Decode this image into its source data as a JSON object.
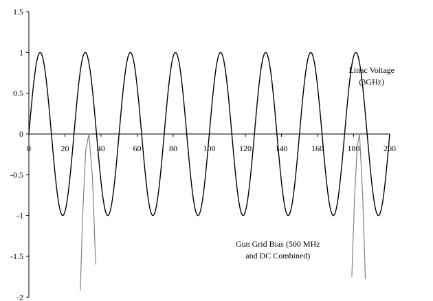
{
  "chart_data": {
    "type": "line",
    "title": "",
    "xlabel": "",
    "ylabel": "",
    "xlim": [
      0,
      200
    ],
    "ylim": [
      -2,
      1.5
    ],
    "grid": false,
    "x_ticks": [
      0,
      20,
      40,
      60,
      80,
      100,
      120,
      140,
      160,
      180,
      200
    ],
    "x_tick_labels": [
      "0",
      "20",
      "40",
      "60",
      "80",
      "100",
      "120",
      "140",
      "160",
      "180",
      "200"
    ],
    "y_ticks": [
      1.5,
      1,
      0.5,
      0,
      -0.5,
      -1,
      -1.5,
      -2
    ],
    "y_tick_labels": [
      "1.5",
      "1",
      "0.5",
      "0",
      "-0.5",
      "-1",
      "-1.5",
      "-2"
    ],
    "series": [
      {
        "name": "Linac Voltage (3GHz)",
        "color": "#000000",
        "function": "sin",
        "amplitude": 1,
        "period": 25,
        "x_range": [
          0,
          200
        ]
      },
      {
        "name": "Gun Grid Bias (500 MHz and DC Combined)",
        "color": "#808080",
        "pulses": [
          {
            "x": [
              28.5,
              30,
              31.5,
              33.3,
              35.3,
              37
            ],
            "y": [
              -1.92,
              -0.9,
              -0.2,
              0,
              -0.55,
              -1.6
            ]
          },
          {
            "x": [
              179,
              180.5,
              182,
              183.3,
              185,
              186.5
            ],
            "y": [
              -1.75,
              -0.8,
              -0.15,
              0,
              -0.75,
              -1.78
            ]
          }
        ]
      }
    ],
    "annotations": [
      {
        "lines": [
          "Linac Voltage",
          "(3GHz)"
        ],
        "x": 190,
        "y": 0.75,
        "anchor": "middle"
      },
      {
        "lines": [
          "Gun Grid Bias (500 MHz",
          "and DC Combined)"
        ],
        "x": 138,
        "y": -1.38,
        "anchor": "middle"
      }
    ]
  }
}
